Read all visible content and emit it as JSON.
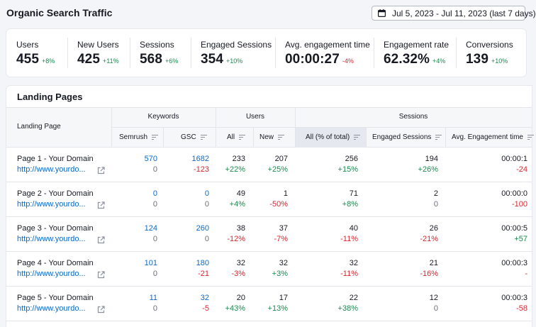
{
  "header": {
    "title": "Organic Search Traffic",
    "date_range": "Jul 5, 2023 - Jul 11, 2023 (last 7 days)"
  },
  "metrics": [
    {
      "label": "Users",
      "value": "455",
      "delta": "+8%",
      "trend": "up"
    },
    {
      "label": "New Users",
      "value": "425",
      "delta": "+11%",
      "trend": "up"
    },
    {
      "label": "Sessions",
      "value": "568",
      "delta": "+6%",
      "trend": "up"
    },
    {
      "label": "Engaged Sessions",
      "value": "354",
      "delta": "+10%",
      "trend": "up"
    },
    {
      "label": "Avg. engagement time",
      "value": "00:00:27",
      "delta": "-4%",
      "trend": "down"
    },
    {
      "label": "Engagement rate",
      "value": "62.32%",
      "delta": "+4%",
      "trend": "up"
    },
    {
      "label": "Conversions",
      "value": "139",
      "delta": "+10%",
      "trend": "up"
    }
  ],
  "landing_pages": {
    "title": "Landing Pages",
    "group_headers": {
      "landing_page": "Landing Page",
      "keywords": "Keywords",
      "users": "Users",
      "sessions": "Sessions"
    },
    "columns": {
      "semrush": "Semrush",
      "gsc": "GSC",
      "users_all": "All",
      "users_new": "New",
      "sessions_all": "All (% of total)",
      "engaged_sessions": "Engaged Sessions",
      "avg_engagement_time": "Avg. Engagement time"
    },
    "rows": [
      {
        "name": "Page 1 - Your Domain",
        "url": "http://www.yourdo...",
        "semrush": "570",
        "semrush_delta": "0",
        "gsc": "1682",
        "gsc_delta": "-123",
        "users_all": "233",
        "users_all_delta": "+22%",
        "users_new": "207",
        "users_new_delta": "+25%",
        "sessions_all": "256",
        "sessions_all_delta": "+15%",
        "engaged": "194",
        "engaged_delta": "+26%",
        "avg_time": "00:00:1",
        "avg_time_delta": "-24"
      },
      {
        "name": "Page 2 - Your Domain",
        "url": "http://www.yourdo...",
        "semrush": "0",
        "semrush_delta": "0",
        "gsc": "0",
        "gsc_delta": "0",
        "users_all": "49",
        "users_all_delta": "+4%",
        "users_new": "1",
        "users_new_delta": "-50%",
        "sessions_all": "71",
        "sessions_all_delta": "+8%",
        "engaged": "2",
        "engaged_delta": "0",
        "avg_time": "00:00:0",
        "avg_time_delta": "-100"
      },
      {
        "name": "Page 3 - Your Domain",
        "url": "http://www.yourdo...",
        "semrush": "124",
        "semrush_delta": "0",
        "gsc": "260",
        "gsc_delta": "0",
        "users_all": "38",
        "users_all_delta": "-12%",
        "users_new": "37",
        "users_new_delta": "-7%",
        "sessions_all": "40",
        "sessions_all_delta": "-11%",
        "engaged": "26",
        "engaged_delta": "-21%",
        "avg_time": "00:00:5",
        "avg_time_delta": "+57"
      },
      {
        "name": "Page 4 - Your Domain",
        "url": "http://www.yourdo...",
        "semrush": "101",
        "semrush_delta": "0",
        "gsc": "180",
        "gsc_delta": "-21",
        "users_all": "32",
        "users_all_delta": "-3%",
        "users_new": "32",
        "users_new_delta": "+3%",
        "sessions_all": "32",
        "sessions_all_delta": "-11%",
        "engaged": "21",
        "engaged_delta": "-16%",
        "avg_time": "00:00:3",
        "avg_time_delta": "-"
      },
      {
        "name": "Page 5 - Your Domain",
        "url": "http://www.yourdo...",
        "semrush": "11",
        "semrush_delta": "0",
        "gsc": "32",
        "gsc_delta": "-5",
        "users_all": "20",
        "users_all_delta": "+43%",
        "users_new": "17",
        "users_new_delta": "+13%",
        "sessions_all": "22",
        "sessions_all_delta": "+38%",
        "engaged": "12",
        "engaged_delta": "0",
        "avg_time": "00:00:3",
        "avg_time_delta": "-58"
      }
    ]
  },
  "colors": {
    "positive": "#1b8a4f",
    "negative": "#d6262f",
    "link": "#0b69c7",
    "sorted_header": "#e6e8ef"
  },
  "icons": {
    "date": "calendar-icon",
    "sort": "sort-lines-icon",
    "external": "external-link-icon"
  }
}
